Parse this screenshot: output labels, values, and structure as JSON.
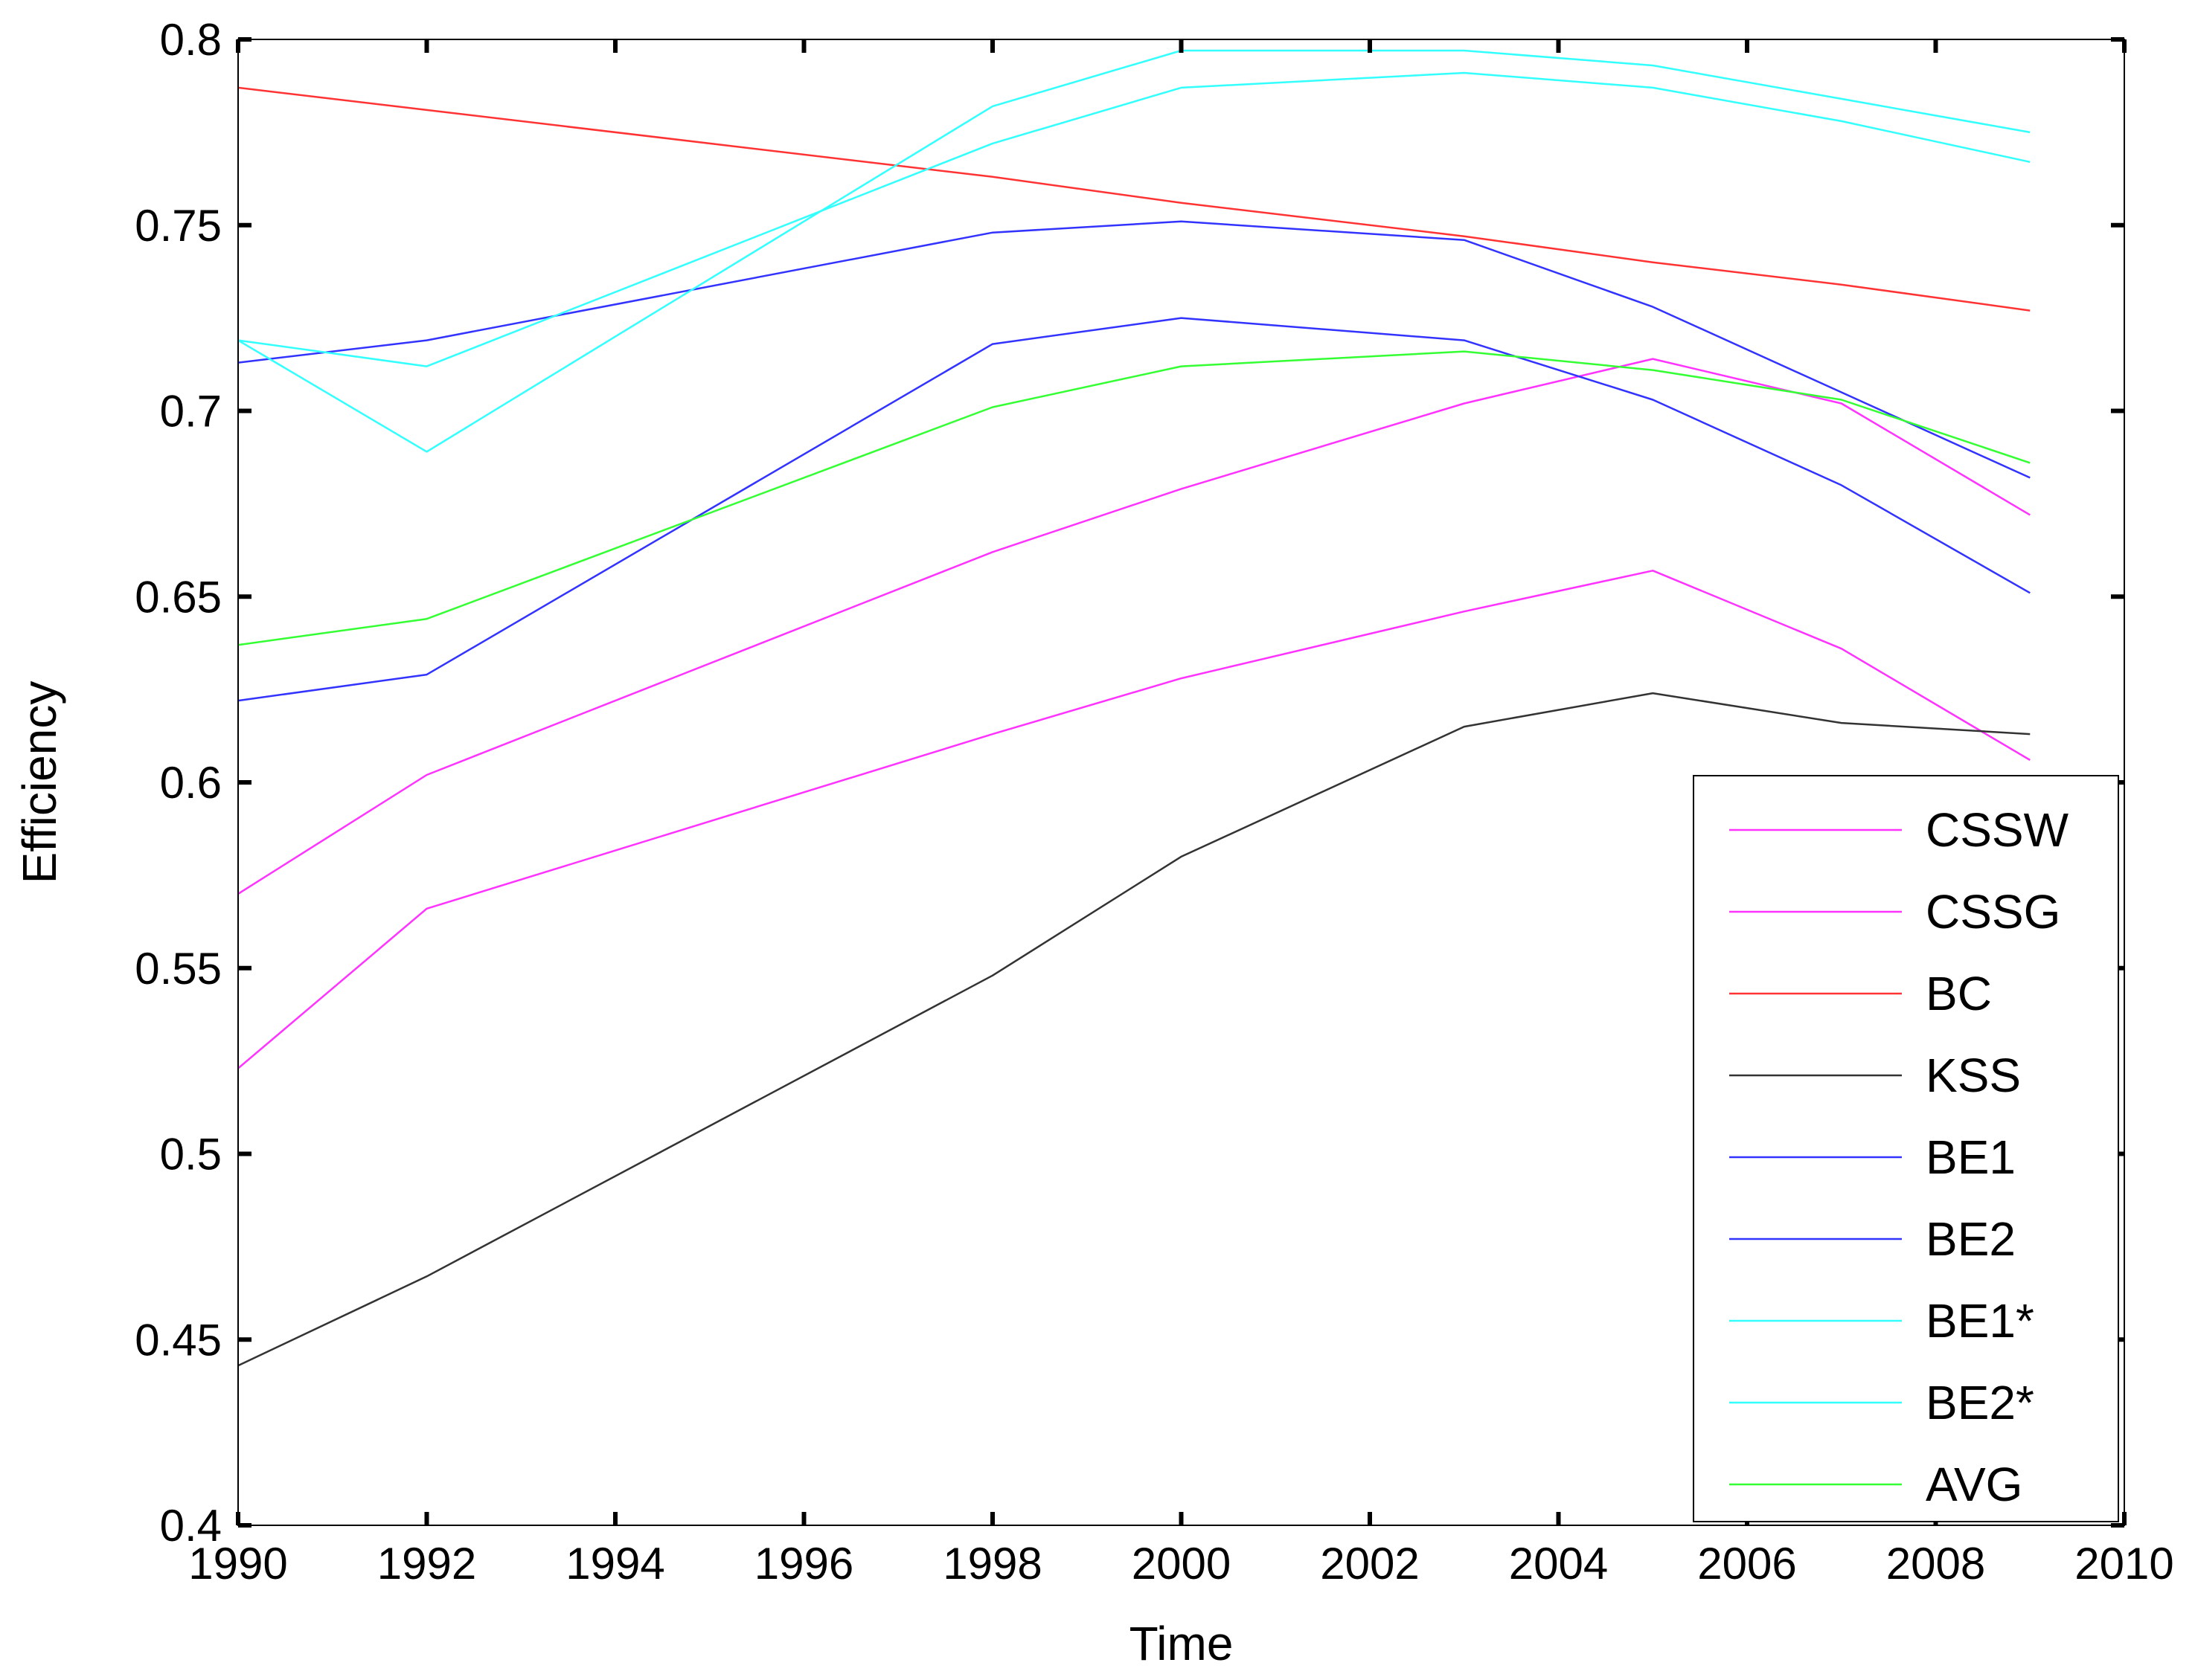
{
  "chart_data": {
    "type": "line",
    "title": "",
    "xlabel": "Time",
    "ylabel": "Efficiency",
    "xlim": [
      1990,
      2010
    ],
    "ylim": [
      0.4,
      0.8
    ],
    "xticks": [
      1990,
      1992,
      1994,
      1996,
      1998,
      2000,
      2002,
      2004,
      2006,
      2008,
      2010
    ],
    "yticks": [
      0.4,
      0.45,
      0.5,
      0.55,
      0.6,
      0.65,
      0.7,
      0.75,
      0.8
    ],
    "xtick_labels": [
      "1990",
      "1992",
      "1994",
      "1996",
      "1998",
      "2000",
      "2002",
      "2004",
      "2006",
      "2008",
      "2010"
    ],
    "ytick_labels": [
      "0.4",
      "0.45",
      "0.5",
      "0.55",
      "0.6",
      "0.65",
      "0.7",
      "0.75",
      "0.8"
    ],
    "grid": false,
    "legend_position": "bottom-right",
    "x": [
      1990,
      1992,
      1998,
      2000,
      2003,
      2005,
      2007,
      2009
    ],
    "series": [
      {
        "name": "CSSW",
        "color": "#ff33ff",
        "values": [
          0.57,
          0.602,
          0.662,
          0.679,
          0.702,
          0.714,
          0.702,
          0.672
        ]
      },
      {
        "name": "CSSG",
        "color": "#ff33ff",
        "values": [
          0.523,
          0.566,
          0.613,
          0.628,
          0.646,
          0.657,
          0.636,
          0.606
        ]
      },
      {
        "name": "BC",
        "color": "#ff3333",
        "values": [
          0.787,
          0.781,
          0.763,
          0.756,
          0.747,
          0.74,
          0.734,
          0.727
        ]
      },
      {
        "name": "KSS",
        "color": "#333333",
        "values": [
          0.443,
          0.467,
          0.548,
          0.58,
          0.615,
          0.624,
          0.616,
          0.613
        ]
      },
      {
        "name": "BE1",
        "color": "#3333ff",
        "values": [
          0.713,
          0.719,
          0.748,
          0.751,
          0.746,
          0.728,
          0.705,
          0.682
        ]
      },
      {
        "name": "BE2",
        "color": "#3333ff",
        "values": [
          0.622,
          0.629,
          0.718,
          0.725,
          0.719,
          0.703,
          0.68,
          0.651
        ]
      },
      {
        "name": "BE1*",
        "color": "#33ffff",
        "values": [
          0.719,
          0.689,
          0.782,
          0.797,
          0.797,
          0.793,
          0.784,
          0.775
        ]
      },
      {
        "name": "BE2*",
        "color": "#33ffff",
        "values": [
          0.719,
          0.712,
          0.772,
          0.787,
          0.791,
          0.787,
          0.778,
          0.767
        ]
      },
      {
        "name": "AVG",
        "color": "#33ff33",
        "values": [
          0.637,
          0.644,
          0.701,
          0.712,
          0.716,
          0.711,
          0.703,
          0.686
        ]
      }
    ]
  }
}
